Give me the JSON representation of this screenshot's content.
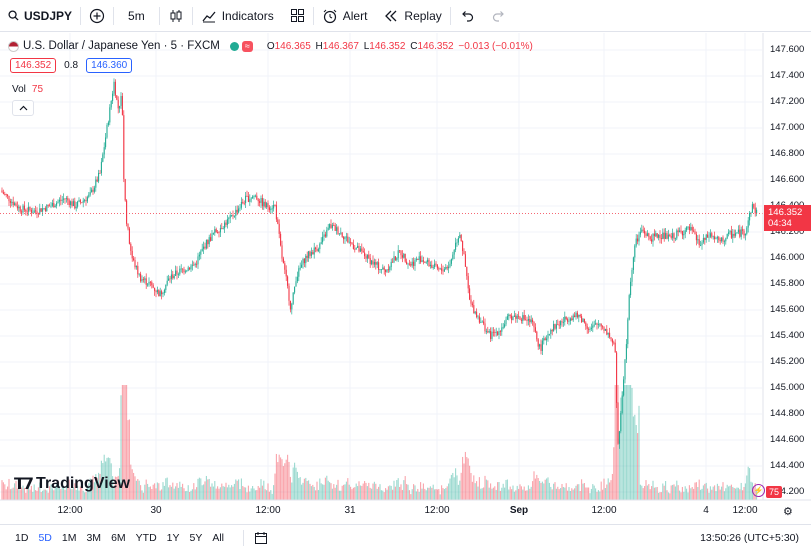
{
  "toolbar": {
    "symbol": "USDJPY",
    "interval": "5m",
    "indicators_label": "Indicators",
    "alert_label": "Alert",
    "replay_label": "Replay"
  },
  "legend": {
    "title": "U.S. Dollar / Japanese Yen · 5 · FXCM",
    "open": "146.365",
    "high": "146.367",
    "low": "146.352",
    "close": "146.352",
    "change": "−0.013 (−0.01%)",
    "badge": "≈",
    "bid": "146.352",
    "spread": "0.8",
    "ask": "146.360",
    "vol_label": "Vol",
    "vol_value": "75"
  },
  "price_axis": [
    "147.600",
    "147.400",
    "147.200",
    "147.000",
    "146.800",
    "146.600",
    "146.400",
    "146.200",
    "146.000",
    "145.800",
    "145.600",
    "145.400",
    "145.200",
    "145.000",
    "144.800",
    "144.600",
    "144.400",
    "144.200"
  ],
  "last_price": {
    "price": "146.352",
    "countdown": "04:34"
  },
  "time_axis": [
    "12:00",
    "30",
    "12:00",
    "31",
    "12:00",
    "Sep",
    "12:00",
    "4",
    "12:00"
  ],
  "bottom": {
    "ranges": [
      "1D",
      "5D",
      "1M",
      "3M",
      "6M",
      "YTD",
      "1Y",
      "5Y",
      "All"
    ],
    "active_range": "5D",
    "clock": "13:50:26 (UTC+5:30)"
  },
  "vol_badge": "75",
  "logo_text": "TradingView",
  "colors": {
    "up": "#22ab94",
    "down": "#f23645",
    "accent": "#2962ff"
  },
  "chart_data": {
    "type": "candlestick",
    "ylim": [
      144.1,
      147.7
    ],
    "close_path": [
      [
        0,
        146.52
      ],
      [
        10,
        146.45
      ],
      [
        20,
        146.38
      ],
      [
        35,
        146.36
      ],
      [
        50,
        146.4
      ],
      [
        65,
        146.46
      ],
      [
        75,
        146.4
      ],
      [
        90,
        146.48
      ],
      [
        100,
        146.65
      ],
      [
        108,
        147.05
      ],
      [
        114,
        147.35
      ],
      [
        118,
        147.15
      ],
      [
        122,
        147.25
      ],
      [
        124,
        146.55
      ],
      [
        127,
        146.25
      ],
      [
        132,
        146.0
      ],
      [
        140,
        145.85
      ],
      [
        150,
        145.8
      ],
      [
        160,
        145.72
      ],
      [
        170,
        145.85
      ],
      [
        180,
        145.9
      ],
      [
        195,
        145.95
      ],
      [
        205,
        146.1
      ],
      [
        215,
        146.2
      ],
      [
        230,
        146.3
      ],
      [
        245,
        146.45
      ],
      [
        255,
        146.48
      ],
      [
        265,
        146.4
      ],
      [
        275,
        146.4
      ],
      [
        282,
        146.0
      ],
      [
        287,
        145.8
      ],
      [
        291,
        145.6
      ],
      [
        296,
        145.85
      ],
      [
        305,
        146.0
      ],
      [
        320,
        146.1
      ],
      [
        330,
        146.25
      ],
      [
        340,
        146.2
      ],
      [
        350,
        146.12
      ],
      [
        360,
        146.05
      ],
      [
        375,
        145.95
      ],
      [
        385,
        145.9
      ],
      [
        400,
        146.05
      ],
      [
        410,
        145.95
      ],
      [
        420,
        146.0
      ],
      [
        430,
        145.95
      ],
      [
        440,
        145.9
      ],
      [
        450,
        145.95
      ],
      [
        455,
        146.1
      ],
      [
        460,
        146.2
      ],
      [
        465,
        145.95
      ],
      [
        470,
        145.65
      ],
      [
        478,
        145.55
      ],
      [
        490,
        145.4
      ],
      [
        500,
        145.45
      ],
      [
        510,
        145.55
      ],
      [
        520,
        145.55
      ],
      [
        532,
        145.5
      ],
      [
        540,
        145.3
      ],
      [
        550,
        145.45
      ],
      [
        560,
        145.5
      ],
      [
        570,
        145.55
      ],
      [
        580,
        145.55
      ],
      [
        590,
        145.45
      ],
      [
        600,
        145.5
      ],
      [
        610,
        145.4
      ],
      [
        615,
        145.3
      ],
      [
        618,
        144.55
      ],
      [
        622,
        144.9
      ],
      [
        626,
        145.3
      ],
      [
        630,
        145.8
      ],
      [
        635,
        146.1
      ],
      [
        642,
        146.22
      ],
      [
        650,
        146.15
      ],
      [
        660,
        146.18
      ],
      [
        670,
        146.15
      ],
      [
        680,
        146.2
      ],
      [
        690,
        146.22
      ],
      [
        700,
        146.1
      ],
      [
        710,
        146.18
      ],
      [
        720,
        146.12
      ],
      [
        730,
        146.18
      ],
      [
        745,
        146.2
      ],
      [
        752,
        146.4
      ],
      [
        757,
        146.35
      ]
    ]
  }
}
